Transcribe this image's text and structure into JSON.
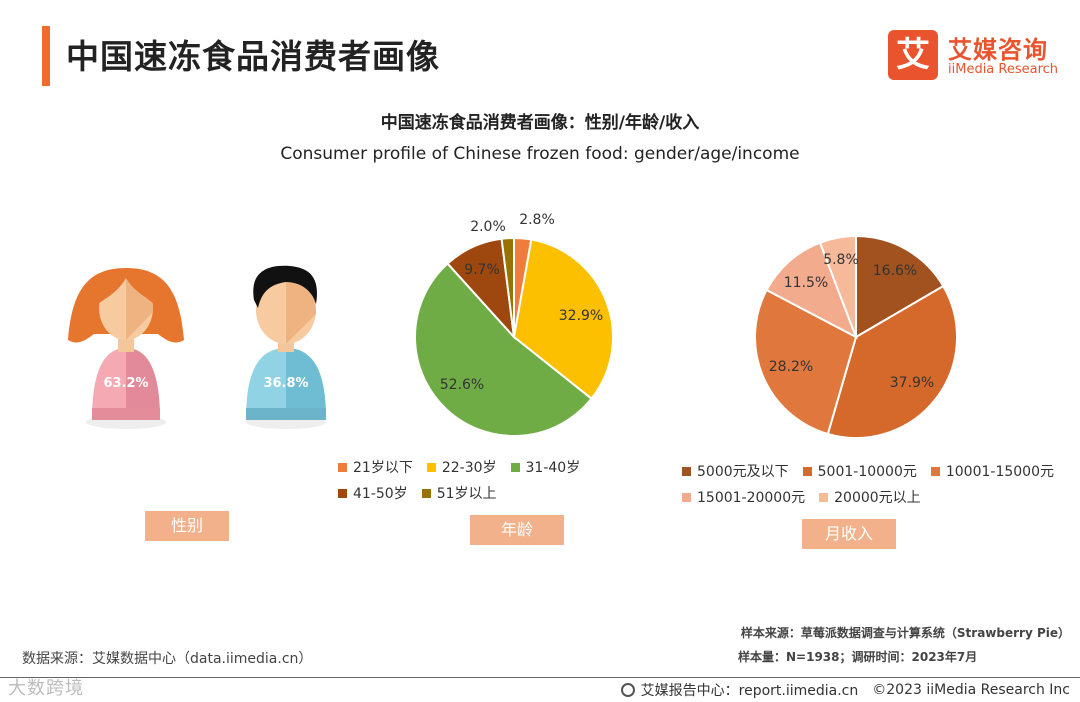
{
  "header": {
    "title": "中国速冻食品消费者画像",
    "logo_box_text": "艾",
    "logo_cn": "艾媒咨询",
    "logo_en": "iiMedia Research"
  },
  "chart_title_cn": "中国速冻食品消费者画像：性别/年龄/收入",
  "chart_title_en": "Consumer profile of Chinese frozen food: gender/age/income",
  "chart_data": [
    {
      "type": "pictogram",
      "categories": [
        "女性",
        "男性"
      ],
      "values": [
        63.2,
        36.8
      ],
      "labels": [
        "63.2%",
        "36.8%"
      ],
      "colors": [
        "#f19aa7",
        "#86cfe2"
      ],
      "tag": "性别"
    },
    {
      "type": "pie",
      "categories": [
        "21岁以下",
        "22-30岁",
        "31-40岁",
        "41-50岁",
        "51岁以上"
      ],
      "values": [
        2.8,
        32.9,
        52.6,
        9.7,
        2.0
      ],
      "labels": [
        "2.8%",
        "32.9%",
        "52.6%",
        "9.7%",
        "2.0%"
      ],
      "colors": [
        "#ee7d3c",
        "#fcc000",
        "#6fac46",
        "#9e480f",
        "#997300"
      ],
      "tag": "年龄"
    },
    {
      "type": "pie",
      "categories": [
        "5000元及以下",
        "5001-10000元",
        "10001-15000元",
        "15001-20000元",
        "20000元以上"
      ],
      "values": [
        16.6,
        37.9,
        28.2,
        11.5,
        5.8
      ],
      "labels": [
        "16.6%",
        "37.9%",
        "28.2%",
        "11.5%",
        "5.8%"
      ],
      "colors": [
        "#a1521f",
        "#d5692b",
        "#e0773c",
        "#f2ab8c",
        "#f6b99a"
      ],
      "tag": "月收入"
    }
  ],
  "footer": {
    "data_source": "数据来源：艾媒数据中心（data.iimedia.cn）",
    "sample_source": "样本来源：草莓派数据调查与计算系统（Strawberry Pie）",
    "sample_size": "样本量：N=1938；调研时间：2023年7月",
    "report_center": "艾媒报告中心：report.iimedia.cn",
    "copyright": "©2023  iiMedia Research  Inc",
    "watermark": "大数跨境"
  }
}
